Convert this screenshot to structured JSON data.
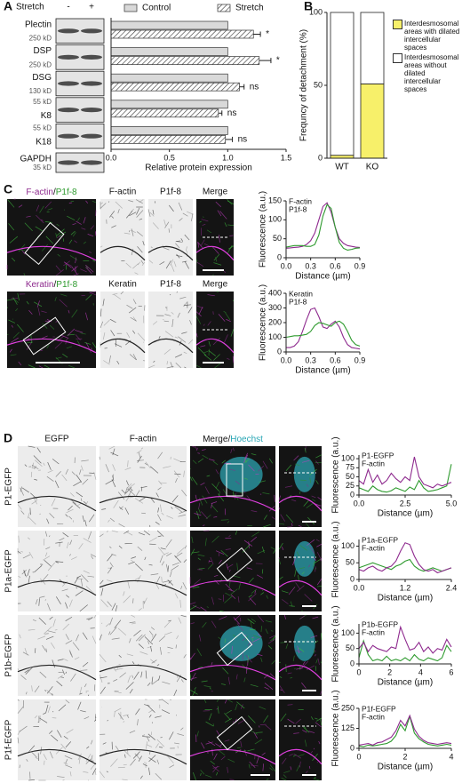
{
  "panel_labels": [
    "A",
    "B",
    "C",
    "D"
  ],
  "blot": {
    "header": "Stretch",
    "lanes": [
      "-",
      "+"
    ],
    "rows": [
      {
        "name": "Plectin",
        "marker": "250 kD"
      },
      {
        "name": "DSP",
        "marker": "250 kD"
      },
      {
        "name": "DSG",
        "marker": "130 kD"
      },
      {
        "name": "K8",
        "marker": "55 kD"
      },
      {
        "name": "K18",
        "marker": "55 kD"
      },
      {
        "name": "GAPDH",
        "marker": "35 kD"
      }
    ]
  },
  "panel_c_images": [
    {
      "merge_title": [
        "F-actin",
        "/",
        "P1f-8"
      ],
      "columns": [
        "F-actin",
        "P1f-8",
        "Merge"
      ]
    },
    {
      "merge_title": [
        "Keratin",
        "/",
        "P1f-8"
      ],
      "columns": [
        "Keratin",
        "P1f-8",
        "Merge"
      ]
    }
  ],
  "panel_d_images": {
    "columns": [
      "EGFP",
      "F-actin"
    ],
    "merge_title": [
      "Merge",
      "/",
      "Hoechst"
    ],
    "rows": [
      "P1-EGFP",
      "P1a-EGFP",
      "P1b-EGFP",
      "P1f-EGFP"
    ]
  },
  "chart_data": [
    {
      "type": "hbar",
      "xlabel": "Relative protein expression",
      "xlim": [
        0,
        1.5
      ],
      "xticks": [
        {
          "value": 0,
          "label": "0.0"
        },
        0.5,
        {
          "value": 1,
          "label": "1.0"
        },
        1.5
      ],
      "series": [
        {
          "name": "Control",
          "color": "#d9d9d9",
          "hatch": false,
          "values": [
            1,
            1,
            1,
            1,
            1
          ]
        },
        {
          "name": "Stretch",
          "color": "#ffffff",
          "hatch": true,
          "values": [
            1.22,
            1.27,
            1.1,
            0.92,
            0.98
          ],
          "errors": [
            0.06,
            0.1,
            0.04,
            0.03,
            0.06
          ]
        }
      ],
      "annotations": [
        "*",
        "*",
        "ns",
        "ns",
        "ns"
      ]
    },
    {
      "type": "stacked_bar",
      "ylabel": "Frequncy of detachment (%)",
      "categories": [
        "WT",
        "KO"
      ],
      "ylim": [
        0,
        100
      ],
      "yticks": [
        0,
        50,
        100
      ],
      "series": [
        {
          "name": "Interdesmosomal areas with dilated intercellular spaces",
          "color": "#f7f06a",
          "values": [
            2,
            51
          ]
        },
        {
          "name": "Interdesmosomal areas without dilated intercellular spaces",
          "color": "#ffffff",
          "values": [
            98,
            49
          ]
        }
      ]
    },
    {
      "type": "line",
      "xlabel": "Distance (µm)",
      "ylabel": "Fluorescence (a.u.)",
      "xlim": [
        0,
        0.9
      ],
      "xticks": [
        {
          "value": 0,
          "label": "0.0"
        },
        0.3,
        0.6,
        0.9
      ],
      "ylim": [
        0,
        150
      ],
      "yticks": [
        0,
        50,
        100,
        150
      ],
      "x": [
        0,
        0.05,
        0.1,
        0.15,
        0.2,
        0.25,
        0.3,
        0.35,
        0.4,
        0.45,
        0.5,
        0.55,
        0.6,
        0.65,
        0.7,
        0.75,
        0.8,
        0.85,
        0.9
      ],
      "series": [
        {
          "name": "F-actin",
          "color": "#8e2a8e",
          "values": [
            25,
            26,
            27,
            28,
            30,
            35,
            45,
            65,
            100,
            135,
            145,
            120,
            80,
            50,
            38,
            32,
            30,
            28,
            27
          ]
        },
        {
          "name": "P1f-8",
          "color": "#2e9a2e",
          "values": [
            28,
            30,
            32,
            32,
            32,
            30,
            30,
            35,
            60,
            110,
            140,
            130,
            80,
            40,
            25,
            20,
            22,
            25,
            26
          ]
        }
      ]
    },
    {
      "type": "line",
      "xlabel": "Distance (µm)",
      "ylabel": "Fluorescence (a.u.)",
      "xlim": [
        0,
        0.9
      ],
      "xticks": [
        {
          "value": 0,
          "label": "0.0"
        },
        0.3,
        0.6,
        0.9
      ],
      "ylim": [
        0,
        400
      ],
      "yticks": [
        0,
        100,
        200,
        300,
        400
      ],
      "x": [
        0,
        0.05,
        0.1,
        0.15,
        0.2,
        0.25,
        0.3,
        0.35,
        0.4,
        0.45,
        0.5,
        0.55,
        0.6,
        0.65,
        0.7,
        0.75,
        0.8,
        0.85,
        0.9
      ],
      "series": [
        {
          "name": "Keratin",
          "color": "#8e2a8e",
          "values": [
            30,
            30,
            40,
            70,
            140,
            220,
            290,
            300,
            240,
            170,
            160,
            190,
            210,
            170,
            100,
            50,
            30,
            25,
            20
          ]
        },
        {
          "name": "P1f-8",
          "color": "#2e9a2e",
          "values": [
            100,
            105,
            110,
            110,
            115,
            120,
            140,
            180,
            200,
            195,
            185,
            175,
            200,
            210,
            190,
            140,
            80,
            50,
            40
          ]
        }
      ]
    },
    {
      "type": "line",
      "xlabel": "Distance (µm)",
      "ylabel": "Fluorescence (a.u.)",
      "xlim": [
        0,
        5
      ],
      "xticks": [
        {
          "value": 0,
          "label": "0.0"
        },
        2.5,
        {
          "value": 5,
          "label": "5.0"
        }
      ],
      "ylim": [
        0,
        110
      ],
      "yticks": [
        0,
        25,
        50,
        75,
        100
      ],
      "x": [
        0,
        0.25,
        0.5,
        0.75,
        1,
        1.25,
        1.5,
        1.75,
        2,
        2.25,
        2.5,
        2.75,
        3,
        3.25,
        3.5,
        3.75,
        4,
        4.25,
        4.5,
        4.75,
        5
      ],
      "series": [
        {
          "name": "P1-EGFP",
          "color": "#2e9a2e",
          "values": [
            20,
            15,
            10,
            25,
            15,
            10,
            8,
            12,
            20,
            15,
            10,
            22,
            15,
            40,
            20,
            10,
            12,
            15,
            20,
            25,
            85
          ]
        },
        {
          "name": "F-actin",
          "color": "#8e2a8e",
          "values": [
            40,
            30,
            70,
            35,
            55,
            30,
            40,
            60,
            45,
            35,
            50,
            40,
            105,
            50,
            30,
            25,
            20,
            30,
            25,
            30,
            35
          ]
        }
      ]
    },
    {
      "type": "line",
      "xlabel": "Distance (µm)",
      "ylabel": "Fluorescence (a.u.)",
      "xlim": [
        0,
        2.4
      ],
      "xticks": [
        {
          "value": 0,
          "label": "0.0"
        },
        1.2,
        2.4
      ],
      "ylim": [
        0,
        120
      ],
      "yticks": [
        0,
        50,
        100
      ],
      "x": [
        0,
        0.12,
        0.24,
        0.36,
        0.48,
        0.6,
        0.72,
        0.84,
        0.96,
        1.08,
        1.2,
        1.32,
        1.44,
        1.56,
        1.68,
        1.8,
        1.92,
        2.04,
        2.16,
        2.28,
        2.4
      ],
      "series": [
        {
          "name": "P1a-EGFP",
          "color": "#2e9a2e",
          "values": [
            35,
            40,
            45,
            50,
            45,
            40,
            35,
            30,
            40,
            45,
            55,
            60,
            40,
            30,
            25,
            30,
            35,
            30,
            25,
            30,
            35
          ]
        },
        {
          "name": "F-actin",
          "color": "#8e2a8e",
          "values": [
            30,
            25,
            35,
            40,
            30,
            25,
            35,
            40,
            55,
            85,
            110,
            105,
            70,
            45,
            30,
            25,
            30,
            20,
            25,
            30,
            35
          ]
        }
      ]
    },
    {
      "type": "line",
      "xlabel": "Distance (µm)",
      "ylabel": "Fluorescence (a.u.)",
      "xlim": [
        0,
        6
      ],
      "xticks": [
        0,
        2,
        4,
        6
      ],
      "ylim": [
        0,
        130
      ],
      "yticks": [
        0,
        50,
        100
      ],
      "x": [
        0,
        0.3,
        0.6,
        0.9,
        1.2,
        1.5,
        1.8,
        2.1,
        2.4,
        2.7,
        3,
        3.3,
        3.6,
        3.9,
        4.2,
        4.5,
        4.8,
        5.1,
        5.4,
        5.7,
        6
      ],
      "series": [
        {
          "name": "P1b-EGFP",
          "color": "#2e9a2e",
          "values": [
            20,
            75,
            30,
            10,
            15,
            10,
            25,
            10,
            15,
            10,
            20,
            10,
            30,
            15,
            10,
            20,
            15,
            10,
            20,
            60,
            40
          ]
        },
        {
          "name": "F-actin",
          "color": "#8e2a8e",
          "values": [
            50,
            70,
            40,
            60,
            50,
            45,
            40,
            55,
            50,
            120,
            80,
            45,
            50,
            70,
            40,
            55,
            35,
            50,
            45,
            80,
            55
          ]
        }
      ]
    },
    {
      "type": "line",
      "xlabel": "Distance (µm)",
      "ylabel": "Fluorescence (a.u.)",
      "xlim": [
        0,
        4
      ],
      "xticks": [
        0,
        2,
        4
      ],
      "ylim": [
        0,
        250
      ],
      "yticks": [
        0,
        125,
        250
      ],
      "x": [
        0,
        0.2,
        0.4,
        0.6,
        0.8,
        1,
        1.2,
        1.4,
        1.6,
        1.8,
        2,
        2.2,
        2.4,
        2.6,
        2.8,
        3,
        3.2,
        3.4,
        3.6,
        3.8,
        4
      ],
      "series": [
        {
          "name": "P1f-EGFP",
          "color": "#2e9a2e",
          "values": [
            15,
            10,
            20,
            15,
            20,
            25,
            30,
            45,
            80,
            150,
            110,
            200,
            95,
            60,
            40,
            25,
            20,
            15,
            20,
            25,
            20
          ]
        },
        {
          "name": "F-actin",
          "color": "#8e2a8e",
          "values": [
            20,
            25,
            30,
            20,
            35,
            40,
            55,
            70,
            110,
            175,
            140,
            205,
            120,
            75,
            50,
            35,
            30,
            25,
            30,
            35,
            30
          ]
        }
      ]
    }
  ]
}
